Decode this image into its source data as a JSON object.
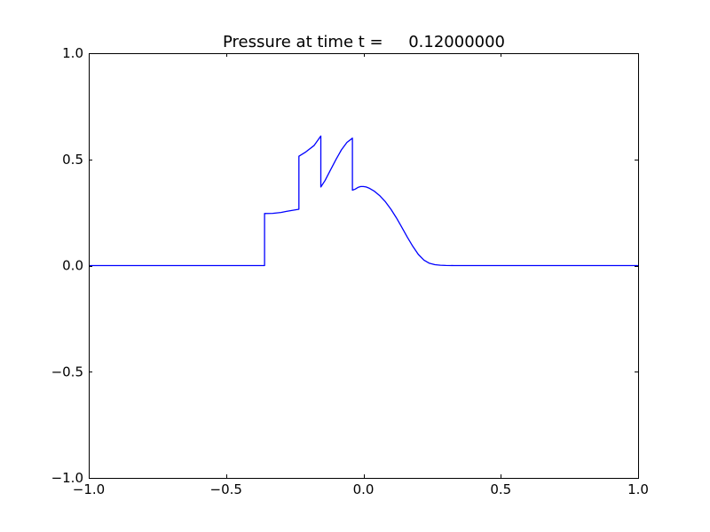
{
  "chart_data": {
    "type": "line",
    "title": "Pressure at time t =     0.12000000",
    "xlabel": "",
    "ylabel": "",
    "xlim": [
      -1.0,
      1.0
    ],
    "ylim": [
      -1.0,
      1.0
    ],
    "xticks": [
      -1.0,
      -0.5,
      0.0,
      0.5,
      1.0
    ],
    "xtick_labels": [
      "−1.0",
      "−0.5",
      "0.0",
      "0.5",
      "1.0"
    ],
    "yticks": [
      -1.0,
      -0.5,
      0.0,
      0.5,
      1.0
    ],
    "ytick_labels": [
      "−1.0",
      "−0.5",
      "0.0",
      "0.5",
      "1.0"
    ],
    "grid": false,
    "series": [
      {
        "color": "#0000ff",
        "x": [
          -1.0,
          -0.36,
          -0.36,
          -0.33,
          -0.3,
          -0.28,
          -0.235,
          -0.235,
          -0.21,
          -0.18,
          -0.155,
          -0.155,
          -0.14,
          -0.12,
          -0.1,
          -0.08,
          -0.06,
          -0.04,
          -0.04,
          -0.03,
          -0.02,
          -0.01,
          0.0,
          0.01,
          0.02,
          0.04,
          0.06,
          0.08,
          0.1,
          0.12,
          0.14,
          0.16,
          0.18,
          0.2,
          0.22,
          0.24,
          0.26,
          0.28,
          0.3,
          0.33,
          0.36,
          0.4,
          0.5,
          1.0
        ],
        "y": [
          0.0,
          0.0,
          0.245,
          0.246,
          0.25,
          0.255,
          0.265,
          0.515,
          0.535,
          0.565,
          0.61,
          0.37,
          0.4,
          0.45,
          0.5,
          0.545,
          0.58,
          0.6,
          0.355,
          0.36,
          0.368,
          0.372,
          0.372,
          0.37,
          0.365,
          0.35,
          0.328,
          0.3,
          0.265,
          0.225,
          0.18,
          0.133,
          0.09,
          0.052,
          0.026,
          0.011,
          0.004,
          0.0015,
          0.0005,
          0.0,
          0.0,
          0.0,
          0.0,
          0.0
        ]
      }
    ]
  }
}
